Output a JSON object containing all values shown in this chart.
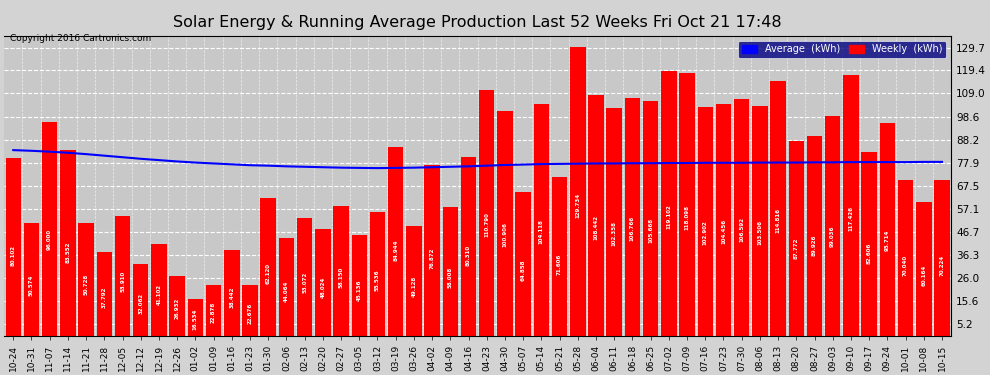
{
  "title": "Solar Energy & Running Average Production Last 52 Weeks Fri Oct 21 17:48",
  "copyright": "Copyright 2016 Cartronics.com",
  "bar_color": "#FF0000",
  "avg_line_color": "#0000FF",
  "background_color": "#D3D3D3",
  "plot_bg_color": "#C8C8C8",
  "grid_color": "#FFFFFF",
  "legend_avg_color": "#0000FF",
  "legend_weekly_color": "#FF0000",
  "yticks": [
    5.2,
    15.6,
    26.0,
    36.3,
    46.7,
    57.1,
    67.5,
    77.9,
    88.2,
    98.6,
    109.0,
    119.4,
    129.7
  ],
  "categories": [
    "10-24",
    "10-31",
    "11-07",
    "11-14",
    "11-21",
    "11-28",
    "12-05",
    "12-12",
    "12-19",
    "12-26",
    "01-02",
    "01-09",
    "01-16",
    "01-23",
    "01-30",
    "02-06",
    "02-13",
    "02-20",
    "02-27",
    "03-05",
    "03-12",
    "03-19",
    "03-26",
    "04-02",
    "04-09",
    "04-16",
    "04-23",
    "04-30",
    "05-07",
    "05-14",
    "05-21",
    "05-28",
    "06-04",
    "06-11",
    "06-18",
    "06-25",
    "07-02",
    "07-09",
    "07-16",
    "07-23",
    "07-30",
    "08-06",
    "08-13",
    "08-20",
    "08-27",
    "09-03",
    "09-10",
    "09-17",
    "09-24",
    "10-01",
    "10-08",
    "10-15"
  ],
  "weekly_values": [
    80.102,
    50.574,
    96.0,
    83.552,
    50.728,
    37.792,
    53.91,
    32.062,
    41.102,
    26.932,
    16.534,
    22.878,
    38.442,
    22.676,
    62.12,
    44.064,
    53.072,
    48.024,
    58.15,
    45.136,
    55.536,
    84.944,
    49.128,
    76.872,
    58.008,
    80.31,
    110.79,
    100.906,
    64.858,
    104.118,
    71.606,
    129.734,
    108.442,
    102.358,
    106.766,
    105.668,
    119.102,
    118.098,
    102.902,
    104.456,
    106.592,
    103.506,
    114.816,
    87.772,
    89.926,
    99.036,
    117.426,
    82.606,
    95.714,
    70.04,
    60.164,
    70.224
  ],
  "avg_values": [
    83.5,
    83.2,
    82.8,
    82.3,
    81.7,
    81.0,
    80.3,
    79.6,
    79.0,
    78.4,
    77.9,
    77.5,
    77.1,
    76.7,
    76.5,
    76.2,
    76.0,
    75.8,
    75.6,
    75.5,
    75.4,
    75.5,
    75.6,
    75.8,
    76.0,
    76.2,
    76.5,
    76.8,
    77.0,
    77.2,
    77.3,
    77.4,
    77.5,
    77.5,
    77.6,
    77.6,
    77.7,
    77.7,
    77.8,
    77.8,
    77.8,
    77.9,
    77.9,
    77.9,
    78.0,
    78.0,
    78.1,
    78.1,
    78.1,
    78.1,
    78.2,
    78.2
  ]
}
